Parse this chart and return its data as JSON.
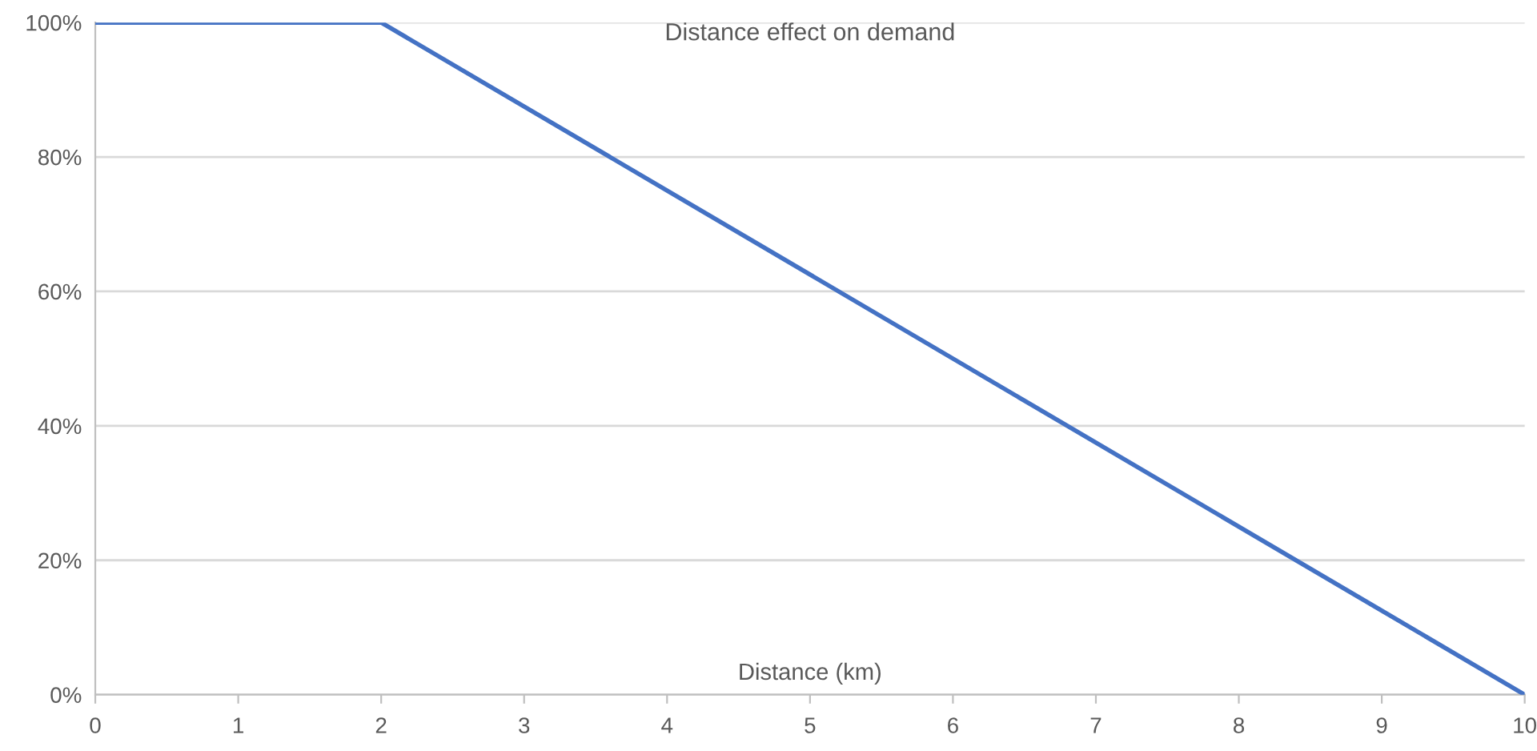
{
  "chart_data": {
    "type": "line",
    "title": "Distance effect on demand",
    "xlabel": "Distance (km)",
    "x": [
      0,
      2,
      10
    ],
    "series": [
      {
        "color": "#4472c4",
        "values": [
          100,
          100,
          0
        ]
      }
    ],
    "xlim": [
      0,
      10
    ],
    "xticks": [
      0,
      1,
      2,
      3,
      4,
      5,
      6,
      7,
      8,
      9,
      10
    ],
    "ylim": [
      0,
      100
    ],
    "yticks": [
      {
        "value": 0,
        "label": "0%"
      },
      {
        "value": 20,
        "label": "20%"
      },
      {
        "value": 40,
        "label": "40%"
      },
      {
        "value": 60,
        "label": "60%"
      },
      {
        "value": 80,
        "label": "80%"
      },
      {
        "value": 100,
        "label": "100%"
      }
    ],
    "grid": "y",
    "legend": false
  }
}
